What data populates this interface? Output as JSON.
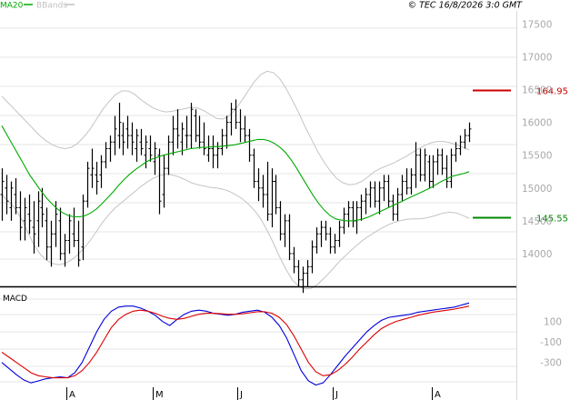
{
  "header": {
    "legend": [
      {
        "label": "MA20",
        "color": "#00aa00"
      },
      {
        "label": "BBands",
        "color": "#c0c0c0"
      }
    ],
    "stamp": "© TEC 16/8/2026 3:0 GMT"
  },
  "chart_data": [
    {
      "type": "ohlc",
      "y_tick_labels": [
        "17500",
        "17000",
        "16500",
        "16000",
        "15500",
        "15000",
        "14500",
        "14000"
      ],
      "ylim": [
        13500,
        17700
      ],
      "x_tick_labels": [
        "A",
        "M",
        "J",
        "J",
        "A"
      ],
      "markers": [
        {
          "label": "164.95",
          "value": 16495,
          "color": "#cc0000"
        },
        {
          "label": "145.55",
          "value": 14555,
          "color": "#008800"
        }
      ],
      "bars": [
        [
          14900,
          15300,
          14500,
          15100
        ],
        [
          15000,
          15200,
          14600,
          14800
        ],
        [
          14700,
          15100,
          14500,
          15000
        ],
        [
          14900,
          15150,
          14600,
          14700
        ],
        [
          14700,
          14950,
          14200,
          14400
        ],
        [
          14500,
          14850,
          14200,
          14700
        ],
        [
          14600,
          14900,
          14300,
          14500
        ],
        [
          14400,
          14800,
          14000,
          14300
        ],
        [
          14500,
          14950,
          14100,
          14800
        ],
        [
          14700,
          15000,
          14400,
          14600
        ],
        [
          14500,
          14700,
          13900,
          14100
        ],
        [
          14100,
          14500,
          13800,
          14300
        ],
        [
          14300,
          14800,
          14100,
          14600
        ],
        [
          14500,
          14700,
          13900,
          14000
        ],
        [
          14000,
          14300,
          13800,
          14200
        ],
        [
          14200,
          14600,
          14000,
          14500
        ],
        [
          14300,
          14700,
          14100,
          14200
        ],
        [
          14200,
          14500,
          13800,
          13900
        ],
        [
          14100,
          14900,
          13900,
          14800
        ],
        [
          14800,
          15400,
          14700,
          15300
        ],
        [
          15200,
          15600,
          15000,
          15300
        ],
        [
          15200,
          15400,
          14900,
          15100
        ],
        [
          15200,
          15500,
          15000,
          15400
        ],
        [
          15400,
          15700,
          15300,
          15600
        ],
        [
          15600,
          15800,
          15400,
          15700
        ],
        [
          15700,
          16100,
          15500,
          15900
        ],
        [
          15800,
          16300,
          15600,
          16000
        ],
        [
          15800,
          16000,
          15500,
          15700
        ],
        [
          15900,
          16100,
          15600,
          15800
        ],
        [
          15800,
          16000,
          15500,
          15700
        ],
        [
          15600,
          15900,
          15400,
          15800
        ],
        [
          15700,
          15900,
          15500,
          15600
        ],
        [
          15500,
          15800,
          15300,
          15700
        ],
        [
          15600,
          15800,
          15400,
          15500
        ],
        [
          15400,
          15700,
          15200,
          15600
        ],
        [
          15500,
          15600,
          14600,
          14800
        ],
        [
          14900,
          15500,
          14700,
          15300
        ],
        [
          15300,
          15800,
          15200,
          15700
        ],
        [
          15700,
          16100,
          15500,
          15900
        ],
        [
          15900,
          16200,
          15600,
          15800
        ],
        [
          15700,
          16000,
          15500,
          15900
        ],
        [
          15800,
          16100,
          15600,
          15800
        ],
        [
          15800,
          16300,
          15600,
          16200
        ],
        [
          16100,
          16200,
          15700,
          15800
        ],
        [
          15800,
          16100,
          15600,
          15700
        ],
        [
          15700,
          16000,
          15500,
          15600
        ],
        [
          15500,
          15800,
          15400,
          15600
        ],
        [
          15600,
          15800,
          15300,
          15500
        ],
        [
          15500,
          15700,
          15300,
          15600
        ],
        [
          15600,
          15900,
          15500,
          15800
        ],
        [
          15800,
          16100,
          15600,
          16000
        ],
        [
          16000,
          16300,
          15800,
          16200
        ],
        [
          16200,
          16350,
          15900,
          16000
        ],
        [
          16000,
          16200,
          15700,
          15900
        ],
        [
          15900,
          16100,
          15700,
          15800
        ],
        [
          15800,
          15900,
          15400,
          15500
        ],
        [
          15500,
          15600,
          15000,
          15100
        ],
        [
          15100,
          15300,
          14800,
          15000
        ],
        [
          15000,
          15200,
          14700,
          14900
        ],
        [
          14900,
          15400,
          14500,
          14600
        ],
        [
          14600,
          15300,
          14400,
          15100
        ],
        [
          15100,
          15200,
          14600,
          14700
        ],
        [
          14700,
          14800,
          14200,
          14300
        ],
        [
          14300,
          14600,
          14100,
          14500
        ],
        [
          14500,
          14600,
          13900,
          14000
        ],
        [
          14000,
          14100,
          13700,
          13800
        ],
        [
          13800,
          13900,
          13500,
          13600
        ],
        [
          13600,
          13800,
          13400,
          13700
        ],
        [
          13700,
          13900,
          13500,
          13800
        ],
        [
          13800,
          14200,
          13700,
          14100
        ],
        [
          14100,
          14400,
          14000,
          14300
        ],
        [
          14300,
          14500,
          14100,
          14400
        ],
        [
          14400,
          14500,
          14200,
          14300
        ],
        [
          14300,
          14400,
          14000,
          14100
        ],
        [
          14100,
          14300,
          14000,
          14200
        ],
        [
          14200,
          14500,
          14100,
          14400
        ],
        [
          14400,
          14700,
          14300,
          14600
        ],
        [
          14600,
          14800,
          14400,
          14700
        ],
        [
          14700,
          14800,
          14400,
          14500
        ],
        [
          14500,
          14800,
          14300,
          14700
        ],
        [
          14700,
          14900,
          14500,
          14800
        ],
        [
          14800,
          15000,
          14600,
          14900
        ],
        [
          14900,
          15100,
          14700,
          15000
        ],
        [
          15000,
          15100,
          14700,
          14800
        ],
        [
          14800,
          15100,
          14600,
          15000
        ],
        [
          15000,
          15200,
          14800,
          15100
        ],
        [
          15100,
          15200,
          14700,
          14800
        ],
        [
          14800,
          14900,
          14500,
          14600
        ],
        [
          14600,
          15000,
          14500,
          14900
        ],
        [
          14900,
          15200,
          14800,
          15100
        ],
        [
          15100,
          15300,
          14900,
          15000
        ],
        [
          15000,
          15300,
          14900,
          15200
        ],
        [
          15200,
          15700,
          15000,
          15500
        ],
        [
          15500,
          15600,
          15100,
          15200
        ],
        [
          15200,
          15600,
          15100,
          15500
        ],
        [
          15400,
          15500,
          15000,
          15100
        ],
        [
          15100,
          15500,
          15000,
          15400
        ],
        [
          15400,
          15600,
          15200,
          15500
        ],
        [
          15500,
          15600,
          15200,
          15300
        ],
        [
          15300,
          15500,
          15000,
          15100
        ],
        [
          15100,
          15600,
          15000,
          15500
        ],
        [
          15500,
          15700,
          15400,
          15600
        ],
        [
          15600,
          15800,
          15500,
          15700
        ],
        [
          15700,
          15900,
          15600,
          15800
        ],
        [
          15800,
          16000,
          15700,
          15900
        ]
      ],
      "ma20": [
        15950,
        15800,
        15650,
        15500,
        15350,
        15200,
        15080,
        14960,
        14850,
        14760,
        14680,
        14620,
        14580,
        14560,
        14560,
        14580,
        14620,
        14680,
        14760,
        14850,
        14940,
        15040,
        15130,
        15210,
        15280,
        15340,
        15400,
        15440,
        15470,
        15500,
        15520,
        15540,
        15560,
        15580,
        15600,
        15610,
        15620,
        15620,
        15630,
        15630,
        15640,
        15650,
        15660,
        15680,
        15700,
        15720,
        15740,
        15740,
        15720,
        15680,
        15620,
        15540,
        15430,
        15300,
        15160,
        15020,
        14880,
        14760,
        14660,
        14580,
        14530,
        14510,
        14500,
        14500,
        14510,
        14530,
        14560,
        14600,
        14640,
        14680,
        14720,
        14760,
        14800,
        14840,
        14880,
        14920,
        14960,
        15000,
        15050,
        15100,
        15140,
        15180,
        15200,
        15220,
        15250
      ],
      "bb_upper": [
        16400,
        16300,
        16200,
        16100,
        16000,
        15900,
        15800,
        15720,
        15660,
        15620,
        15600,
        15620,
        15680,
        15780,
        15900,
        16050,
        16200,
        16320,
        16420,
        16480,
        16480,
        16430,
        16350,
        16280,
        16220,
        16180,
        16160,
        16170,
        16190,
        16210,
        16230,
        16220,
        16180,
        16120,
        16060,
        16050,
        16100,
        16200,
        16330,
        16480,
        16620,
        16730,
        16780,
        16760,
        16670,
        16520,
        16340,
        16150,
        15940,
        15750,
        15560,
        15400,
        15260,
        15150,
        15080,
        15050,
        15060,
        15100,
        15170,
        15250,
        15300,
        15340,
        15380,
        15430,
        15480,
        15540,
        15600,
        15650,
        15690,
        15710,
        15710,
        15690,
        15660,
        15620,
        15580
      ],
      "bb_lower": [
        14900,
        14800,
        14700,
        14550,
        14350,
        14150,
        14000,
        13900,
        13850,
        13830,
        13850,
        13900,
        13980,
        14080,
        14200,
        14340,
        14480,
        14600,
        14700,
        14780,
        14860,
        14940,
        15020,
        15090,
        15150,
        15190,
        15210,
        15200,
        15170,
        15130,
        15080,
        15050,
        15030,
        15010,
        15000,
        14980,
        14950,
        14900,
        14840,
        14760,
        14660,
        14530,
        14360,
        14160,
        13950,
        13760,
        13600,
        13500,
        13460,
        13470,
        13530,
        13620,
        13720,
        13830,
        13930,
        14020,
        14110,
        14190,
        14260,
        14320,
        14380,
        14430,
        14470,
        14500,
        14520,
        14530,
        14530,
        14540,
        14560,
        14590,
        14620,
        14630,
        14620,
        14580,
        14540
      ]
    },
    {
      "type": "line",
      "title": "MACD",
      "y_tick_labels": [
        "100",
        "-100",
        "-300"
      ],
      "ylim": [
        -560,
        380
      ],
      "series": [
        {
          "color": "#0000dd",
          "values": [
            -300,
            -360,
            -420,
            -470,
            -500,
            -480,
            -460,
            -450,
            -440,
            -450,
            -400,
            -300,
            -150,
            0,
            120,
            200,
            240,
            250,
            250,
            230,
            200,
            160,
            100,
            60,
            120,
            170,
            200,
            210,
            200,
            180,
            170,
            160,
            170,
            190,
            200,
            210,
            190,
            140,
            60,
            -60,
            -220,
            -380,
            -480,
            -520,
            -500,
            -420,
            -330,
            -240,
            -160,
            -80,
            0,
            60,
            110,
            140,
            150,
            160,
            170,
            190,
            200,
            210,
            220,
            230,
            240,
            260,
            280
          ]
        },
        {
          "color": "#dd0000",
          "values": [
            -200,
            -250,
            -300,
            -350,
            -400,
            -430,
            -440,
            -450,
            -450,
            -450,
            -430,
            -380,
            -300,
            -200,
            -80,
            40,
            120,
            170,
            200,
            210,
            200,
            180,
            150,
            130,
            120,
            130,
            150,
            170,
            180,
            180,
            175,
            170,
            170,
            175,
            185,
            195,
            195,
            180,
            140,
            70,
            -40,
            -170,
            -300,
            -390,
            -430,
            -420,
            -380,
            -320,
            -250,
            -170,
            -100,
            -30,
            30,
            70,
            100,
            120,
            140,
            160,
            175,
            190,
            200,
            210,
            220,
            235,
            250
          ]
        }
      ]
    }
  ]
}
